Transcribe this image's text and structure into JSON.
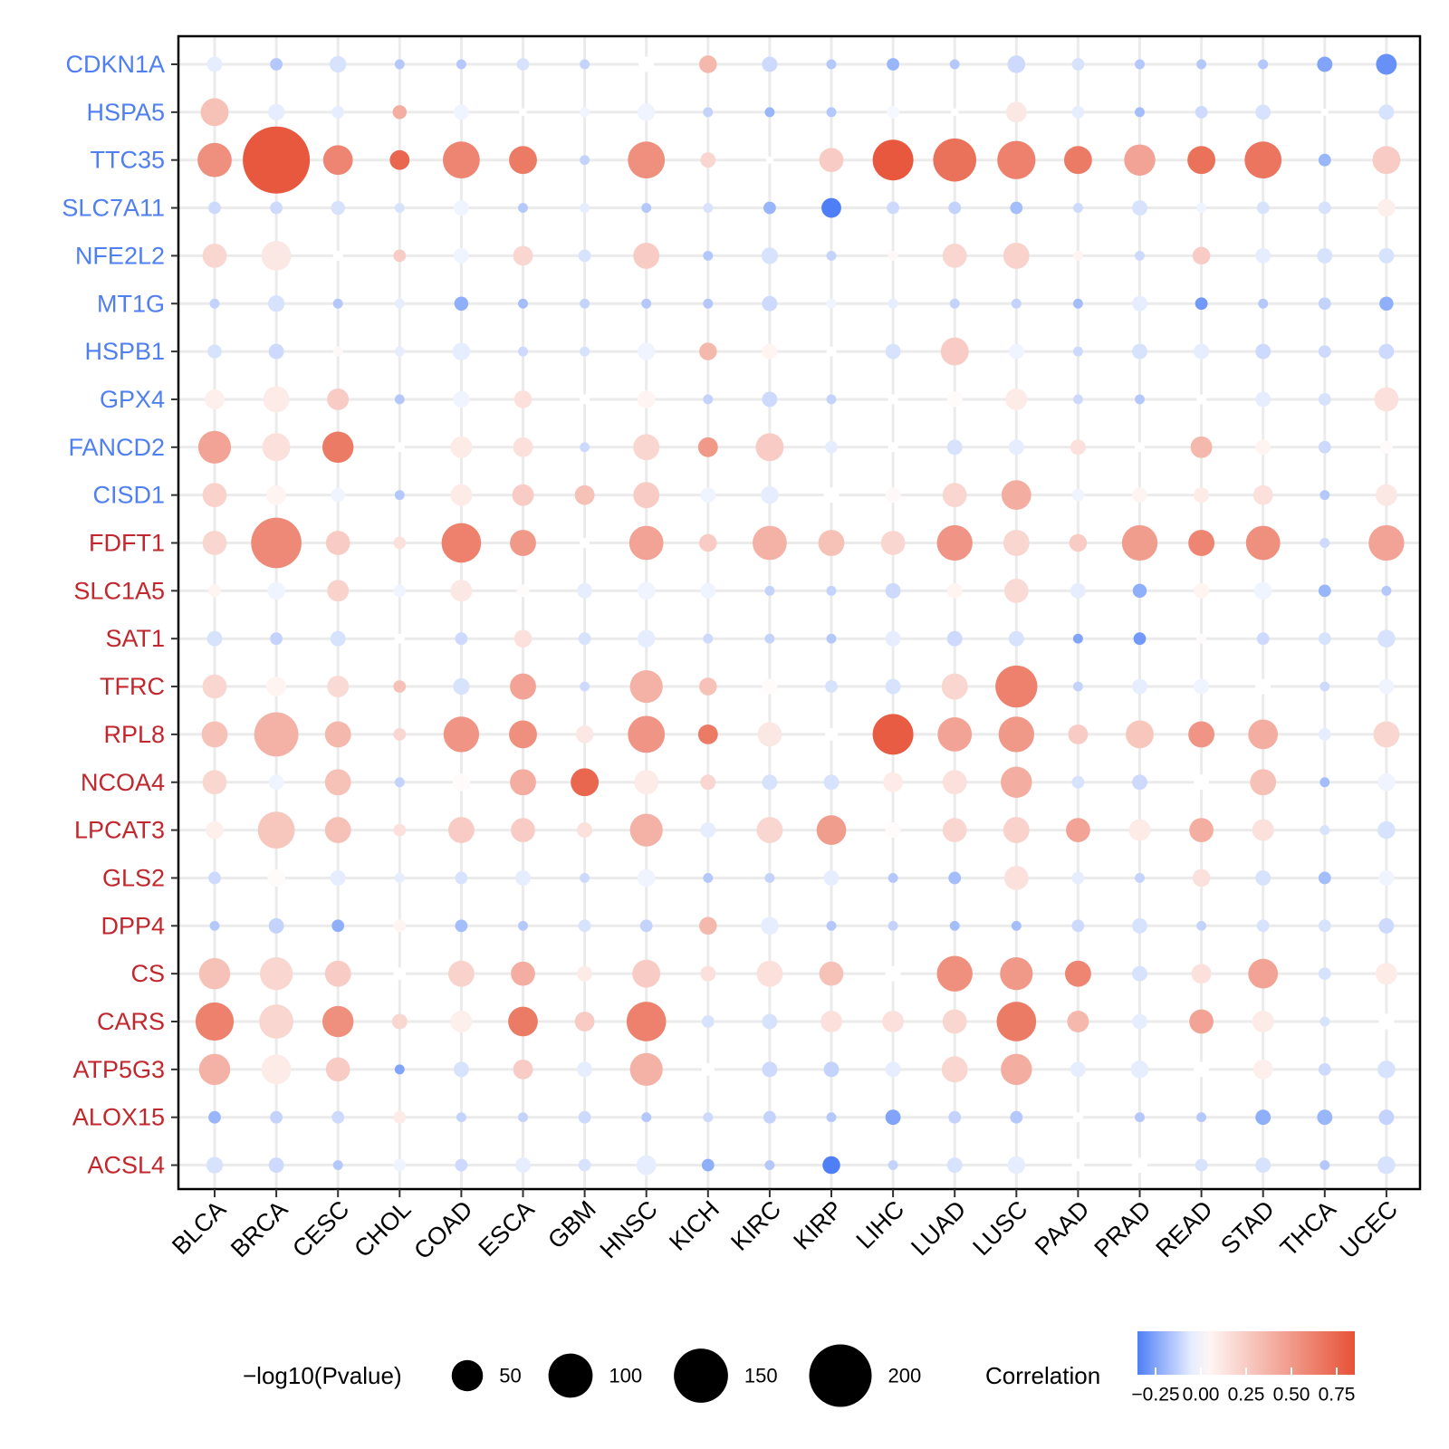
{
  "chart_data": {
    "type": "bubble",
    "genes": [
      "CDKN1A",
      "HSPA5",
      "TTC35",
      "SLC7A11",
      "NFE2L2",
      "MT1G",
      "HSPB1",
      "GPX4",
      "FANCD2",
      "CISD1",
      "FDFT1",
      "SLC1A5",
      "SAT1",
      "TFRC",
      "RPL8",
      "NCOA4",
      "LPCAT3",
      "GLS2",
      "DPP4",
      "CS",
      "CARS",
      "ATP5G3",
      "ALOX15",
      "ACSL4"
    ],
    "gene_label_colors": [
      "#4F7FF0",
      "#4F7FF0",
      "#4F7FF0",
      "#4F7FF0",
      "#4F7FF0",
      "#4F7FF0",
      "#4F7FF0",
      "#4F7FF0",
      "#4F7FF0",
      "#4F7FF0",
      "#C1272D",
      "#C1272D",
      "#C1272D",
      "#C1272D",
      "#C1272D",
      "#C1272D",
      "#C1272D",
      "#C1272D",
      "#C1272D",
      "#C1272D",
      "#C1272D",
      "#C1272D",
      "#C1272D",
      "#C1272D"
    ],
    "cancers": [
      "BLCA",
      "BRCA",
      "CESC",
      "CHOL",
      "COAD",
      "ESCA",
      "GBM",
      "HNSC",
      "KICH",
      "KIRC",
      "KIRP",
      "LIHC",
      "LUAD",
      "LUSC",
      "PAAD",
      "PRAD",
      "READ",
      "STAD",
      "THCA",
      "UCEC"
    ],
    "correlation": [
      [
        -0.05,
        -0.15,
        -0.08,
        -0.15,
        -0.15,
        -0.08,
        -0.12,
        0.0,
        0.35,
        -0.1,
        -0.15,
        -0.2,
        -0.15,
        -0.1,
        -0.08,
        -0.15,
        -0.15,
        -0.15,
        -0.25,
        -0.3
      ],
      [
        0.3,
        -0.05,
        -0.05,
        0.4,
        -0.03,
        0.0,
        -0.03,
        -0.03,
        -0.12,
        -0.2,
        -0.15,
        -0.02,
        0.0,
        0.12,
        -0.05,
        -0.18,
        -0.1,
        -0.08,
        0.0,
        -0.08
      ],
      [
        0.55,
        0.82,
        0.6,
        0.75,
        0.6,
        0.65,
        -0.12,
        0.55,
        0.2,
        0.0,
        0.25,
        0.82,
        0.7,
        0.62,
        0.65,
        0.45,
        0.7,
        0.68,
        -0.2,
        0.25
      ],
      [
        -0.1,
        -0.1,
        -0.08,
        -0.08,
        -0.03,
        -0.15,
        -0.05,
        -0.15,
        -0.08,
        -0.2,
        -0.35,
        -0.1,
        -0.12,
        -0.18,
        -0.1,
        -0.08,
        -0.03,
        -0.08,
        -0.08,
        0.08
      ],
      [
        0.2,
        0.12,
        0.0,
        0.25,
        -0.03,
        0.2,
        -0.08,
        0.25,
        -0.15,
        -0.08,
        -0.12,
        0.03,
        0.2,
        0.22,
        0.05,
        -0.1,
        0.25,
        -0.05,
        -0.08,
        -0.08
      ],
      [
        -0.12,
        -0.08,
        -0.15,
        -0.05,
        -0.22,
        -0.18,
        -0.12,
        -0.15,
        -0.15,
        -0.1,
        -0.03,
        -0.05,
        -0.12,
        -0.12,
        -0.18,
        -0.05,
        -0.28,
        -0.15,
        -0.12,
        -0.22
      ],
      [
        -0.08,
        -0.1,
        0.03,
        -0.05,
        -0.05,
        -0.1,
        -0.08,
        -0.03,
        0.35,
        0.05,
        0.0,
        -0.08,
        0.25,
        -0.03,
        -0.1,
        -0.08,
        -0.05,
        -0.1,
        -0.1,
        -0.1
      ],
      [
        0.08,
        0.1,
        0.25,
        -0.15,
        -0.03,
        0.15,
        0.0,
        0.05,
        -0.12,
        -0.1,
        -0.12,
        0.0,
        0.02,
        0.1,
        -0.1,
        -0.15,
        0.0,
        -0.05,
        -0.08,
        0.15
      ],
      [
        0.45,
        0.15,
        0.65,
        0.0,
        0.1,
        0.15,
        -0.1,
        0.2,
        0.5,
        0.25,
        -0.05,
        0.0,
        -0.08,
        -0.05,
        0.15,
        0.0,
        0.35,
        0.05,
        -0.1,
        0.02
      ],
      [
        0.22,
        0.05,
        -0.03,
        -0.15,
        0.1,
        0.25,
        0.3,
        0.25,
        -0.03,
        -0.05,
        0.0,
        0.03,
        0.2,
        0.4,
        -0.03,
        0.05,
        0.1,
        0.15,
        -0.15,
        0.12
      ],
      [
        0.2,
        0.58,
        0.25,
        0.15,
        0.62,
        0.5,
        0.0,
        0.45,
        0.25,
        0.38,
        0.3,
        0.2,
        0.52,
        0.2,
        0.25,
        0.48,
        0.6,
        0.55,
        -0.1,
        0.45
      ],
      [
        0.05,
        -0.03,
        0.22,
        -0.03,
        0.12,
        0.02,
        -0.05,
        -0.03,
        -0.03,
        -0.12,
        -0.12,
        -0.1,
        0.05,
        0.18,
        -0.05,
        -0.22,
        0.05,
        -0.03,
        -0.2,
        -0.15
      ],
      [
        -0.08,
        -0.12,
        -0.08,
        0.0,
        -0.1,
        0.15,
        -0.08,
        -0.05,
        -0.1,
        -0.12,
        -0.15,
        -0.05,
        -0.1,
        -0.08,
        -0.25,
        -0.28,
        0.02,
        -0.1,
        -0.08,
        -0.08
      ],
      [
        0.2,
        0.05,
        0.18,
        0.3,
        -0.08,
        0.45,
        -0.1,
        0.38,
        0.3,
        0.02,
        -0.08,
        -0.08,
        0.2,
        0.62,
        -0.12,
        -0.05,
        -0.03,
        0.0,
        -0.1,
        -0.03
      ],
      [
        0.3,
        0.38,
        0.35,
        0.2,
        0.52,
        0.55,
        0.12,
        0.52,
        0.65,
        0.12,
        0.0,
        0.8,
        0.45,
        0.5,
        0.25,
        0.28,
        0.52,
        0.4,
        -0.05,
        0.2
      ],
      [
        0.2,
        -0.03,
        0.3,
        -0.12,
        0.02,
        0.4,
        0.75,
        0.1,
        0.2,
        -0.08,
        -0.08,
        0.1,
        0.15,
        0.4,
        -0.08,
        -0.1,
        0.0,
        0.3,
        -0.18,
        -0.03
      ],
      [
        0.08,
        0.28,
        0.3,
        0.15,
        0.25,
        0.25,
        0.15,
        0.38,
        -0.05,
        0.2,
        0.48,
        0.02,
        0.2,
        0.22,
        0.45,
        0.1,
        0.4,
        0.15,
        -0.08,
        -0.08
      ],
      [
        -0.1,
        0.02,
        -0.05,
        -0.05,
        -0.08,
        -0.05,
        -0.1,
        -0.03,
        -0.15,
        -0.12,
        -0.05,
        -0.15,
        -0.18,
        0.15,
        -0.05,
        -0.12,
        0.15,
        -0.08,
        -0.18,
        -0.03
      ],
      [
        -0.15,
        -0.12,
        -0.22,
        0.05,
        -0.18,
        -0.15,
        -0.08,
        -0.12,
        0.35,
        -0.05,
        -0.15,
        -0.12,
        -0.18,
        -0.18,
        -0.1,
        -0.08,
        -0.12,
        -0.08,
        -0.08,
        -0.1
      ],
      [
        0.3,
        0.2,
        0.25,
        0.0,
        0.22,
        0.4,
        0.1,
        0.25,
        0.15,
        0.15,
        0.3,
        0.0,
        0.55,
        0.5,
        0.6,
        -0.08,
        0.15,
        0.45,
        -0.08,
        0.1
      ],
      [
        0.62,
        0.2,
        0.55,
        0.2,
        0.08,
        0.65,
        0.25,
        0.62,
        -0.08,
        -0.08,
        0.15,
        0.15,
        0.2,
        0.65,
        0.35,
        -0.05,
        0.45,
        0.1,
        -0.08,
        0.0
      ],
      [
        0.38,
        0.1,
        0.25,
        -0.25,
        -0.08,
        0.25,
        -0.05,
        0.38,
        0.0,
        -0.1,
        -0.12,
        -0.05,
        0.2,
        0.4,
        -0.05,
        -0.05,
        0.0,
        0.08,
        -0.1,
        -0.08
      ],
      [
        -0.2,
        -0.12,
        -0.1,
        0.1,
        -0.12,
        -0.12,
        -0.1,
        -0.15,
        -0.1,
        -0.12,
        -0.15,
        -0.25,
        -0.12,
        -0.15,
        0.0,
        -0.15,
        -0.15,
        -0.22,
        -0.2,
        -0.12
      ],
      [
        -0.08,
        -0.1,
        -0.15,
        -0.03,
        -0.1,
        -0.05,
        -0.08,
        -0.05,
        -0.22,
        -0.15,
        -0.35,
        -0.12,
        -0.08,
        -0.05,
        0.0,
        0.0,
        -0.08,
        -0.08,
        -0.15,
        -0.08
      ]
    ],
    "neglog10_pvalue": [
      [
        12,
        8,
        14,
        5,
        5,
        8,
        5,
        12,
        16,
        12,
        5,
        8,
        5,
        16,
        8,
        5,
        5,
        5,
        12,
        22
      ],
      [
        40,
        14,
        8,
        10,
        12,
        3,
        5,
        16,
        5,
        5,
        5,
        8,
        3,
        22,
        8,
        5,
        8,
        12,
        2,
        12
      ],
      [
        60,
        230,
        45,
        20,
        70,
        40,
        5,
        70,
        12,
        2,
        30,
        85,
        95,
        75,
        40,
        50,
        40,
        70,
        8,
        40
      ],
      [
        8,
        8,
        10,
        5,
        12,
        5,
        5,
        5,
        5,
        8,
        20,
        8,
        8,
        8,
        5,
        12,
        5,
        8,
        8,
        16
      ],
      [
        30,
        45,
        5,
        8,
        12,
        20,
        8,
        35,
        5,
        14,
        5,
        5,
        30,
        35,
        5,
        5,
        16,
        12,
        12,
        12
      ],
      [
        5,
        14,
        5,
        5,
        10,
        5,
        5,
        5,
        5,
        12,
        5,
        5,
        5,
        5,
        5,
        12,
        8,
        5,
        8,
        10
      ],
      [
        10,
        12,
        5,
        5,
        16,
        5,
        5,
        16,
        16,
        12,
        5,
        12,
        40,
        12,
        5,
        12,
        12,
        12,
        8,
        12
      ],
      [
        20,
        35,
        24,
        5,
        14,
        16,
        5,
        16,
        5,
        12,
        5,
        5,
        12,
        24,
        5,
        5,
        5,
        12,
        8,
        30
      ],
      [
        55,
        40,
        50,
        5,
        24,
        20,
        5,
        35,
        20,
        40,
        8,
        5,
        12,
        12,
        12,
        5,
        24,
        12,
        8,
        8
      ],
      [
        30,
        20,
        10,
        5,
        24,
        24,
        20,
        35,
        12,
        16,
        12,
        12,
        30,
        45,
        8,
        12,
        12,
        20,
        5,
        24
      ],
      [
        30,
        130,
        30,
        8,
        80,
        35,
        5,
        60,
        16,
        60,
        35,
        30,
        65,
        35,
        16,
        65,
        35,
        60,
        5,
        65
      ],
      [
        8,
        16,
        24,
        8,
        24,
        8,
        12,
        16,
        12,
        5,
        5,
        12,
        12,
        30,
        12,
        10,
        12,
        16,
        8,
        5
      ],
      [
        12,
        8,
        12,
        5,
        8,
        16,
        8,
        16,
        5,
        5,
        5,
        12,
        12,
        12,
        5,
        8,
        5,
        8,
        8,
        16
      ],
      [
        30,
        20,
        24,
        8,
        14,
        35,
        5,
        55,
        16,
        12,
        8,
        12,
        35,
        90,
        5,
        12,
        12,
        12,
        5,
        12
      ],
      [
        35,
        100,
        35,
        8,
        65,
        40,
        16,
        70,
        20,
        30,
        8,
        85,
        60,
        65,
        20,
        40,
        35,
        45,
        8,
        35
      ],
      [
        30,
        12,
        35,
        5,
        16,
        35,
        40,
        30,
        12,
        12,
        12,
        20,
        30,
        50,
        8,
        12,
        12,
        35,
        5,
        16
      ],
      [
        16,
        70,
        35,
        8,
        35,
        30,
        12,
        55,
        12,
        35,
        45,
        12,
        30,
        35,
        30,
        24,
        30,
        24,
        5,
        16
      ],
      [
        8,
        16,
        12,
        5,
        8,
        12,
        5,
        16,
        5,
        5,
        12,
        5,
        8,
        30,
        8,
        5,
        16,
        12,
        8,
        12
      ],
      [
        5,
        12,
        8,
        8,
        8,
        5,
        8,
        8,
        16,
        16,
        5,
        5,
        5,
        5,
        8,
        12,
        5,
        8,
        8,
        12
      ],
      [
        50,
        55,
        35,
        8,
        35,
        30,
        12,
        40,
        12,
        35,
        30,
        12,
        65,
        55,
        35,
        12,
        20,
        45,
        8,
        24
      ],
      [
        75,
        60,
        50,
        12,
        24,
        45,
        20,
        80,
        8,
        12,
        24,
        24,
        30,
        80,
        24,
        12,
        30,
        24,
        5,
        12
      ],
      [
        50,
        45,
        30,
        5,
        12,
        20,
        12,
        55,
        8,
        12,
        12,
        12,
        35,
        50,
        12,
        16,
        12,
        20,
        8,
        16
      ],
      [
        8,
        8,
        8,
        8,
        5,
        5,
        8,
        5,
        5,
        8,
        5,
        12,
        8,
        8,
        5,
        5,
        5,
        12,
        12,
        12
      ],
      [
        14,
        12,
        5,
        8,
        8,
        12,
        8,
        20,
        8,
        5,
        16,
        5,
        12,
        16,
        8,
        12,
        8,
        12,
        5,
        16
      ]
    ],
    "size_legend": {
      "title": "−log10(Pvalue)",
      "breaks": [
        50,
        100,
        150,
        200
      ],
      "labels": [
        "50",
        "100",
        "150",
        "200"
      ]
    },
    "color_legend": {
      "title": "Correlation",
      "range": [
        -0.35,
        0.85
      ],
      "tick_values": [
        -0.25,
        0.0,
        0.25,
        0.5,
        0.75
      ],
      "tick_labels": [
        "−0.25",
        "0.00",
        "0.25",
        "0.50",
        "0.75"
      ],
      "low_color": "#4F7FF7",
      "mid_color": "#FFFFFF",
      "high_color": "#E65237"
    },
    "grid": true,
    "legend_position": "bottom"
  }
}
